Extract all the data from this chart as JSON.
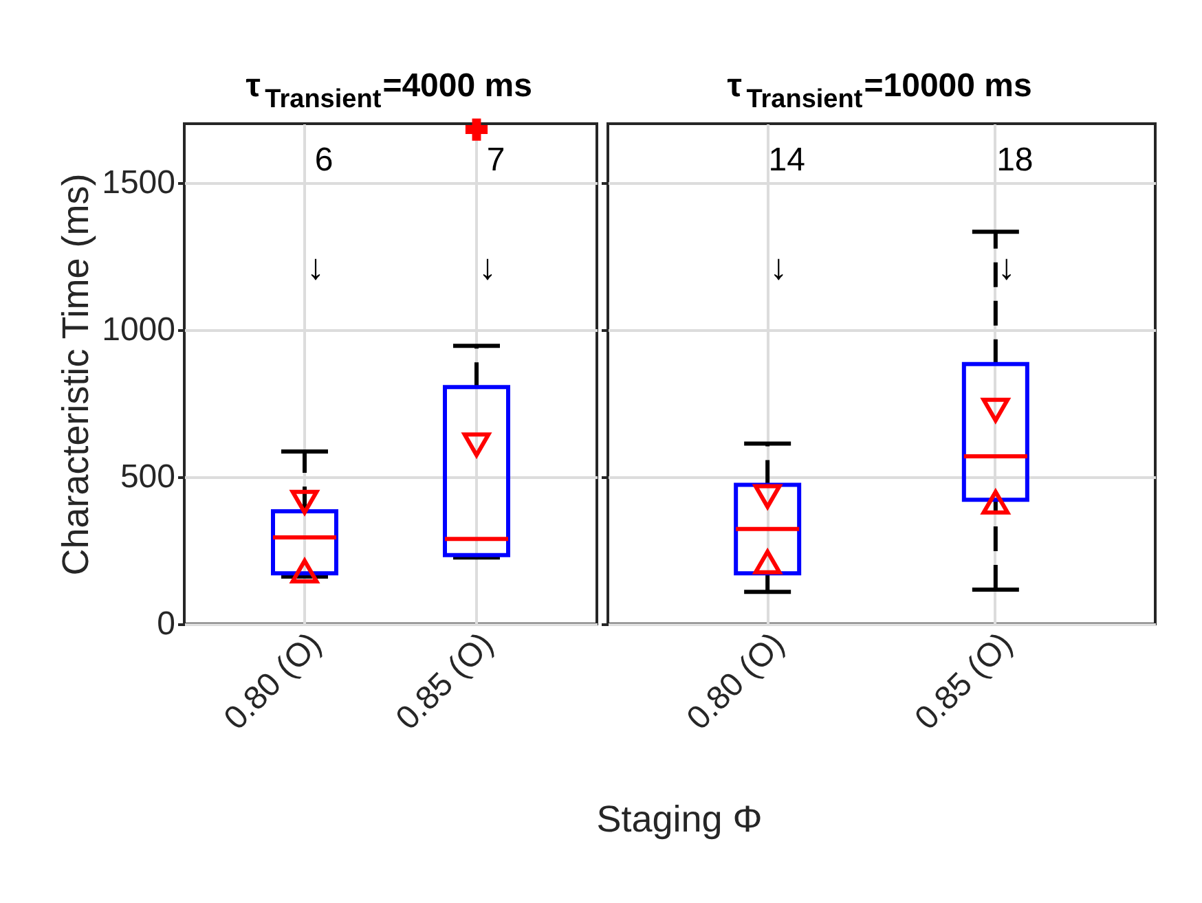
{
  "chart_data": [
    {
      "type": "box",
      "title": "τ$_{Transient}$=4000 ms",
      "ylabel": "Characteristic Time (ms)",
      "xlabel": "Staging Φ",
      "categories": [
        "0.80 (O)",
        "0.85 (O)"
      ],
      "ylim": [
        0,
        1700
      ],
      "yticks": [
        0,
        500,
        1000,
        1500
      ],
      "grid": true,
      "line_style": "dashed",
      "series": [
        {
          "type": "box",
          "color": "#0000ff",
          "boxes": [
            {
              "low": 161,
              "q1": 172,
              "median": 294,
              "q3": 383,
              "high": 586
            },
            {
              "low": 226,
              "q1": 234,
              "median": 289,
              "q3": 805,
              "high": 945,
              "outliers": [
                1680
              ]
            }
          ]
        },
        {
          "type": "scatter",
          "marker": "triangle",
          "color": "#ff0000",
          "values": [
            414,
            609
          ]
        },
        {
          "type": "scatter",
          "marker": "triangle",
          "color": "#ff0000",
          "values": [
            180,
            null
          ]
        }
      ],
      "annotations": [
        "6",
        "7",
        "↓",
        "↓"
      ]
    },
    {
      "type": "box",
      "title": "τ$_{Transient}$=10000 ms",
      "categories": [
        "0.80 (O)",
        "0.85 (O)"
      ],
      "ylim": [
        0,
        1700
      ],
      "yticks": [
        0,
        500,
        1000,
        1500
      ],
      "grid": true,
      "line_style": "dashed",
      "tick_labels": "x",
      "series": [
        {
          "type": "box",
          "color": "#0000ff",
          "boxes": [
            {
              "low": 109,
              "q1": 172,
              "median": 323,
              "q3": 473,
              "high": 613
            },
            {
              "low": 117,
              "q1": 422,
              "median": 570,
              "q3": 883,
              "high": 1333
            }
          ]
        },
        {
          "type": "scatter",
          "marker": "triangle",
          "color": "#ff0000",
          "values": [
            433,
            727
          ]
        },
        {
          "type": "scatter",
          "marker": "triangle",
          "color": "#ff0000",
          "values": [
            211,
            414
          ]
        }
      ],
      "annotations": [
        "14",
        "18",
        "↓",
        "↓"
      ]
    }
  ]
}
